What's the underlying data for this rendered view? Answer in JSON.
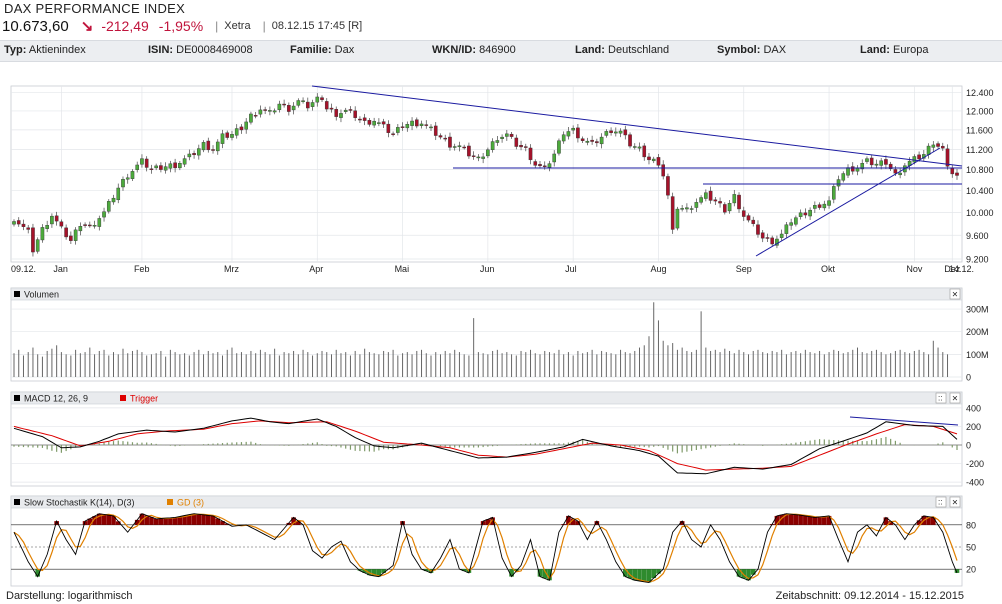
{
  "header": {
    "title": "DAX PERFORMANCE INDEX",
    "price": "10.673,60",
    "change": "-212,49",
    "change_pct": "-1,95%",
    "exchange": "Xetra",
    "datetime": "08.12.15 17:45 [R]",
    "colors": {
      "negative": "#c0143c"
    }
  },
  "infobar": [
    {
      "label": "Typ:",
      "value": "Aktienindex"
    },
    {
      "label": "ISIN:",
      "value": "DE0008469008"
    },
    {
      "label": "Familie:",
      "value": "Dax"
    },
    {
      "label": "WKN/ID:",
      "value": "846900"
    },
    {
      "label": "Land:",
      "value": "Deutschland"
    },
    {
      "label": "Symbol:",
      "value": "DAX"
    },
    {
      "label": "Land:",
      "value": "Europa"
    }
  ],
  "footer": {
    "display": "Darstellung: logarithmisch",
    "range": "Zeitabschnitt: 09.12.2014 - 15.12.2015"
  },
  "chart_data": [
    {
      "type": "candlestick",
      "series": "DAX PERFORMANCE INDEX",
      "scale": "log",
      "y_ticks": [
        "9.200",
        "9.600",
        "10.000",
        "10.400",
        "10.800",
        "11.200",
        "11.600",
        "12.000",
        "12.400"
      ],
      "x_ticks": [
        "09.12.",
        "Jan",
        "Feb",
        "Mrz",
        "Apr",
        "Mai",
        "Jun",
        "Jul",
        "Aug",
        "Sep",
        "Okt",
        "Nov",
        "Dez",
        "14.12."
      ],
      "ylim": [
        9150,
        12550
      ],
      "ohlc_path": [
        [
          0,
          9900
        ],
        [
          3,
          9650
        ],
        [
          4,
          9350
        ],
        [
          6,
          9700
        ],
        [
          8,
          9950
        ],
        [
          10,
          9700
        ],
        [
          12,
          9500
        ],
        [
          14,
          9800
        ],
        [
          16,
          9750
        ],
        [
          19,
          10000
        ],
        [
          22,
          10450
        ],
        [
          24,
          10700
        ],
        [
          27,
          10950
        ],
        [
          29,
          10800
        ],
        [
          31,
          10850
        ],
        [
          34,
          10900
        ],
        [
          37,
          11050
        ],
        [
          40,
          11300
        ],
        [
          42,
          11200
        ],
        [
          44,
          11450
        ],
        [
          46,
          11500
        ],
        [
          48,
          11650
        ],
        [
          50,
          11900
        ],
        [
          52,
          12050
        ],
        [
          54,
          11950
        ],
        [
          56,
          12150
        ],
        [
          58,
          12050
        ],
        [
          60,
          12200
        ],
        [
          62,
          12100
        ],
        [
          64,
          12250
        ],
        [
          65,
          12300
        ],
        [
          66,
          12050
        ],
        [
          68,
          11950
        ],
        [
          70,
          12000
        ],
        [
          72,
          11900
        ],
        [
          74,
          11750
        ],
        [
          76,
          11800
        ],
        [
          78,
          11650
        ],
        [
          80,
          11500
        ],
        [
          82,
          11700
        ],
        [
          84,
          11750
        ],
        [
          86,
          11750
        ],
        [
          88,
          11600
        ],
        [
          90,
          11450
        ],
        [
          92,
          11300
        ],
        [
          94,
          11250
        ],
        [
          96,
          11100
        ],
        [
          98,
          11000
        ],
        [
          100,
          11200
        ],
        [
          102,
          11450
        ],
        [
          104,
          11500
        ],
        [
          106,
          11300
        ],
        [
          108,
          11200
        ],
        [
          110,
          10900
        ],
        [
          112,
          10800
        ],
        [
          114,
          11100
        ],
        [
          116,
          11550
        ],
        [
          118,
          11600
        ],
        [
          120,
          11400
        ],
        [
          122,
          11300
        ],
        [
          124,
          11450
        ],
        [
          126,
          11600
        ],
        [
          128,
          11550
        ],
        [
          130,
          11300
        ],
        [
          132,
          11200
        ],
        [
          134,
          11000
        ],
        [
          136,
          10950
        ],
        [
          137,
          10700
        ],
        [
          138,
          10300
        ],
        [
          139,
          9650
        ],
        [
          140,
          10100
        ],
        [
          142,
          10050
        ],
        [
          144,
          10200
        ],
        [
          146,
          10300
        ],
        [
          148,
          10200
        ],
        [
          150,
          10050
        ],
        [
          152,
          10300
        ],
        [
          154,
          9950
        ],
        [
          156,
          9750
        ],
        [
          158,
          9550
        ],
        [
          160,
          9500
        ],
        [
          162,
          9600
        ],
        [
          164,
          9850
        ],
        [
          166,
          9950
        ],
        [
          168,
          10050
        ],
        [
          170,
          10150
        ],
        [
          172,
          10200
        ],
        [
          174,
          10650
        ],
        [
          176,
          10800
        ],
        [
          178,
          10850
        ],
        [
          180,
          10950
        ],
        [
          182,
          10900
        ],
        [
          184,
          10950
        ],
        [
          186,
          10700
        ],
        [
          188,
          10900
        ],
        [
          190,
          11000
        ],
        [
          192,
          11100
        ],
        [
          194,
          11350
        ],
        [
          196,
          11200
        ],
        [
          197,
          10800
        ],
        [
          198,
          10750
        ],
        [
          199,
          10680
        ]
      ]
    },
    {
      "type": "bar",
      "title": "Volumen",
      "y_ticks": [
        "0",
        "100M",
        "200M",
        "300M"
      ],
      "ylim": [
        0,
        340
      ],
      "unit": "Mio. Stück",
      "values": [
        105,
        120,
        95,
        110,
        130,
        100,
        90,
        115,
        125,
        140,
        110,
        100,
        95,
        120,
        105,
        110,
        130,
        100,
        115,
        120,
        95,
        110,
        100,
        125,
        105,
        115,
        120,
        110,
        95,
        100,
        105,
        115,
        90,
        120,
        110,
        100,
        105,
        95,
        110,
        120,
        100,
        115,
        105,
        110,
        95,
        120,
        130,
        105,
        110,
        100,
        115,
        105,
        120,
        110,
        100,
        125,
        95,
        110,
        105,
        115,
        100,
        120,
        110,
        95,
        105,
        115,
        110,
        100,
        120,
        105,
        110,
        95,
        115,
        100,
        125,
        110,
        105,
        100,
        115,
        110,
        120,
        95,
        105,
        110,
        100,
        115,
        120,
        105,
        95,
        110,
        100,
        115,
        105,
        120,
        110,
        100,
        95,
        260,
        110,
        105,
        100,
        115,
        120,
        105,
        110,
        100,
        95,
        115,
        110,
        120,
        105,
        100,
        115,
        110,
        105,
        120,
        100,
        110,
        95,
        115,
        105,
        110,
        120,
        100,
        115,
        110,
        105,
        100,
        120,
        110,
        105,
        115,
        130,
        140,
        180,
        330,
        250,
        160,
        140,
        150,
        120,
        130,
        115,
        110,
        120,
        290,
        130,
        115,
        120,
        110,
        125,
        115,
        105,
        120,
        110,
        100,
        115,
        120,
        110,
        105,
        115,
        110,
        120,
        100,
        110,
        115,
        105,
        120,
        110,
        105,
        115,
        100,
        110,
        120,
        115,
        105,
        110,
        120,
        130,
        110,
        105,
        115,
        120,
        110,
        100,
        105,
        115,
        120,
        110,
        105,
        115,
        120,
        110,
        100,
        160,
        130,
        110,
        100
      ]
    },
    {
      "type": "line",
      "title": "MACD 12, 26, 9",
      "trigger_label": "Trigger",
      "y_ticks": [
        "400",
        "200",
        "0",
        "-200",
        "-400"
      ],
      "ylim": [
        -420,
        420
      ],
      "macd": [
        [
          0,
          180
        ],
        [
          6,
          90
        ],
        [
          10,
          -30
        ],
        [
          14,
          -20
        ],
        [
          18,
          40
        ],
        [
          22,
          120
        ],
        [
          28,
          160
        ],
        [
          34,
          140
        ],
        [
          40,
          180
        ],
        [
          46,
          260
        ],
        [
          50,
          290
        ],
        [
          54,
          250
        ],
        [
          58,
          230
        ],
        [
          64,
          280
        ],
        [
          68,
          200
        ],
        [
          72,
          80
        ],
        [
          76,
          -10
        ],
        [
          80,
          -30
        ],
        [
          86,
          20
        ],
        [
          92,
          -60
        ],
        [
          98,
          -140
        ],
        [
          104,
          -130
        ],
        [
          110,
          -80
        ],
        [
          116,
          -20
        ],
        [
          120,
          60
        ],
        [
          126,
          -10
        ],
        [
          132,
          -60
        ],
        [
          136,
          -120
        ],
        [
          140,
          -300
        ],
        [
          146,
          -310
        ],
        [
          152,
          -240
        ],
        [
          158,
          -260
        ],
        [
          164,
          -210
        ],
        [
          170,
          -40
        ],
        [
          176,
          60
        ],
        [
          180,
          130
        ],
        [
          184,
          250
        ],
        [
          190,
          210
        ],
        [
          196,
          200
        ],
        [
          199,
          60
        ]
      ],
      "trigger": [
        [
          0,
          200
        ],
        [
          8,
          100
        ],
        [
          14,
          -10
        ],
        [
          20,
          40
        ],
        [
          26,
          120
        ],
        [
          32,
          150
        ],
        [
          40,
          170
        ],
        [
          46,
          230
        ],
        [
          52,
          260
        ],
        [
          58,
          240
        ],
        [
          66,
          250
        ],
        [
          72,
          150
        ],
        [
          78,
          30
        ],
        [
          86,
          0
        ],
        [
          92,
          -30
        ],
        [
          98,
          -110
        ],
        [
          104,
          -130
        ],
        [
          110,
          -100
        ],
        [
          116,
          -40
        ],
        [
          122,
          20
        ],
        [
          128,
          0
        ],
        [
          134,
          -60
        ],
        [
          140,
          -200
        ],
        [
          146,
          -270
        ],
        [
          152,
          -260
        ],
        [
          158,
          -250
        ],
        [
          164,
          -230
        ],
        [
          170,
          -110
        ],
        [
          176,
          10
        ],
        [
          182,
          120
        ],
        [
          188,
          220
        ],
        [
          194,
          200
        ],
        [
          199,
          120
        ]
      ],
      "colors": {
        "macd": "#000000",
        "trigger": "#dd0000",
        "histogram": "#7f9a6a"
      }
    },
    {
      "type": "line",
      "title": "Slow Stochastik K(14), D(3)",
      "d_label": "GD (3)",
      "y_ticks": [
        "80",
        "50",
        "20"
      ],
      "ylim": [
        0,
        100
      ],
      "k": [
        [
          0,
          70
        ],
        [
          3,
          30
        ],
        [
          5,
          10
        ],
        [
          7,
          40
        ],
        [
          9,
          85
        ],
        [
          11,
          60
        ],
        [
          13,
          40
        ],
        [
          15,
          85
        ],
        [
          18,
          95
        ],
        [
          21,
          92
        ],
        [
          24,
          70
        ],
        [
          27,
          95
        ],
        [
          30,
          88
        ],
        [
          34,
          90
        ],
        [
          38,
          95
        ],
        [
          42,
          92
        ],
        [
          46,
          78
        ],
        [
          49,
          80
        ],
        [
          52,
          70
        ],
        [
          55,
          60
        ],
        [
          57,
          75
        ],
        [
          59,
          90
        ],
        [
          61,
          80
        ],
        [
          63,
          45
        ],
        [
          65,
          35
        ],
        [
          67,
          50
        ],
        [
          69,
          58
        ],
        [
          71,
          30
        ],
        [
          73,
          18
        ],
        [
          75,
          12
        ],
        [
          77,
          10
        ],
        [
          80,
          25
        ],
        [
          82,
          85
        ],
        [
          84,
          40
        ],
        [
          86,
          20
        ],
        [
          88,
          15
        ],
        [
          90,
          35
        ],
        [
          92,
          60
        ],
        [
          94,
          20
        ],
        [
          96,
          15
        ],
        [
          99,
          85
        ],
        [
          101,
          90
        ],
        [
          103,
          35
        ],
        [
          105,
          10
        ],
        [
          107,
          25
        ],
        [
          109,
          60
        ],
        [
          111,
          10
        ],
        [
          113,
          5
        ],
        [
          115,
          70
        ],
        [
          117,
          92
        ],
        [
          119,
          85
        ],
        [
          121,
          60
        ],
        [
          123,
          85
        ],
        [
          125,
          60
        ],
        [
          127,
          30
        ],
        [
          129,
          10
        ],
        [
          131,
          5
        ],
        [
          134,
          2
        ],
        [
          137,
          20
        ],
        [
          139,
          70
        ],
        [
          141,
          85
        ],
        [
          143,
          60
        ],
        [
          145,
          50
        ],
        [
          147,
          80
        ],
        [
          149,
          60
        ],
        [
          151,
          30
        ],
        [
          153,
          10
        ],
        [
          155,
          5
        ],
        [
          157,
          20
        ],
        [
          159,
          70
        ],
        [
          161,
          92
        ],
        [
          163,
          95
        ],
        [
          166,
          93
        ],
        [
          169,
          90
        ],
        [
          172,
          92
        ],
        [
          174,
          60
        ],
        [
          176,
          30
        ],
        [
          178,
          70
        ],
        [
          180,
          80
        ],
        [
          182,
          65
        ],
        [
          184,
          90
        ],
        [
          186,
          80
        ],
        [
          188,
          60
        ],
        [
          190,
          80
        ],
        [
          192,
          92
        ],
        [
          194,
          90
        ],
        [
          196,
          70
        ],
        [
          198,
          30
        ],
        [
          199,
          15
        ]
      ],
      "colors": {
        "k": "#000000",
        "d": "#e08000",
        "overbought": "#8b0000",
        "oversold": "#2e8b2e"
      }
    }
  ]
}
